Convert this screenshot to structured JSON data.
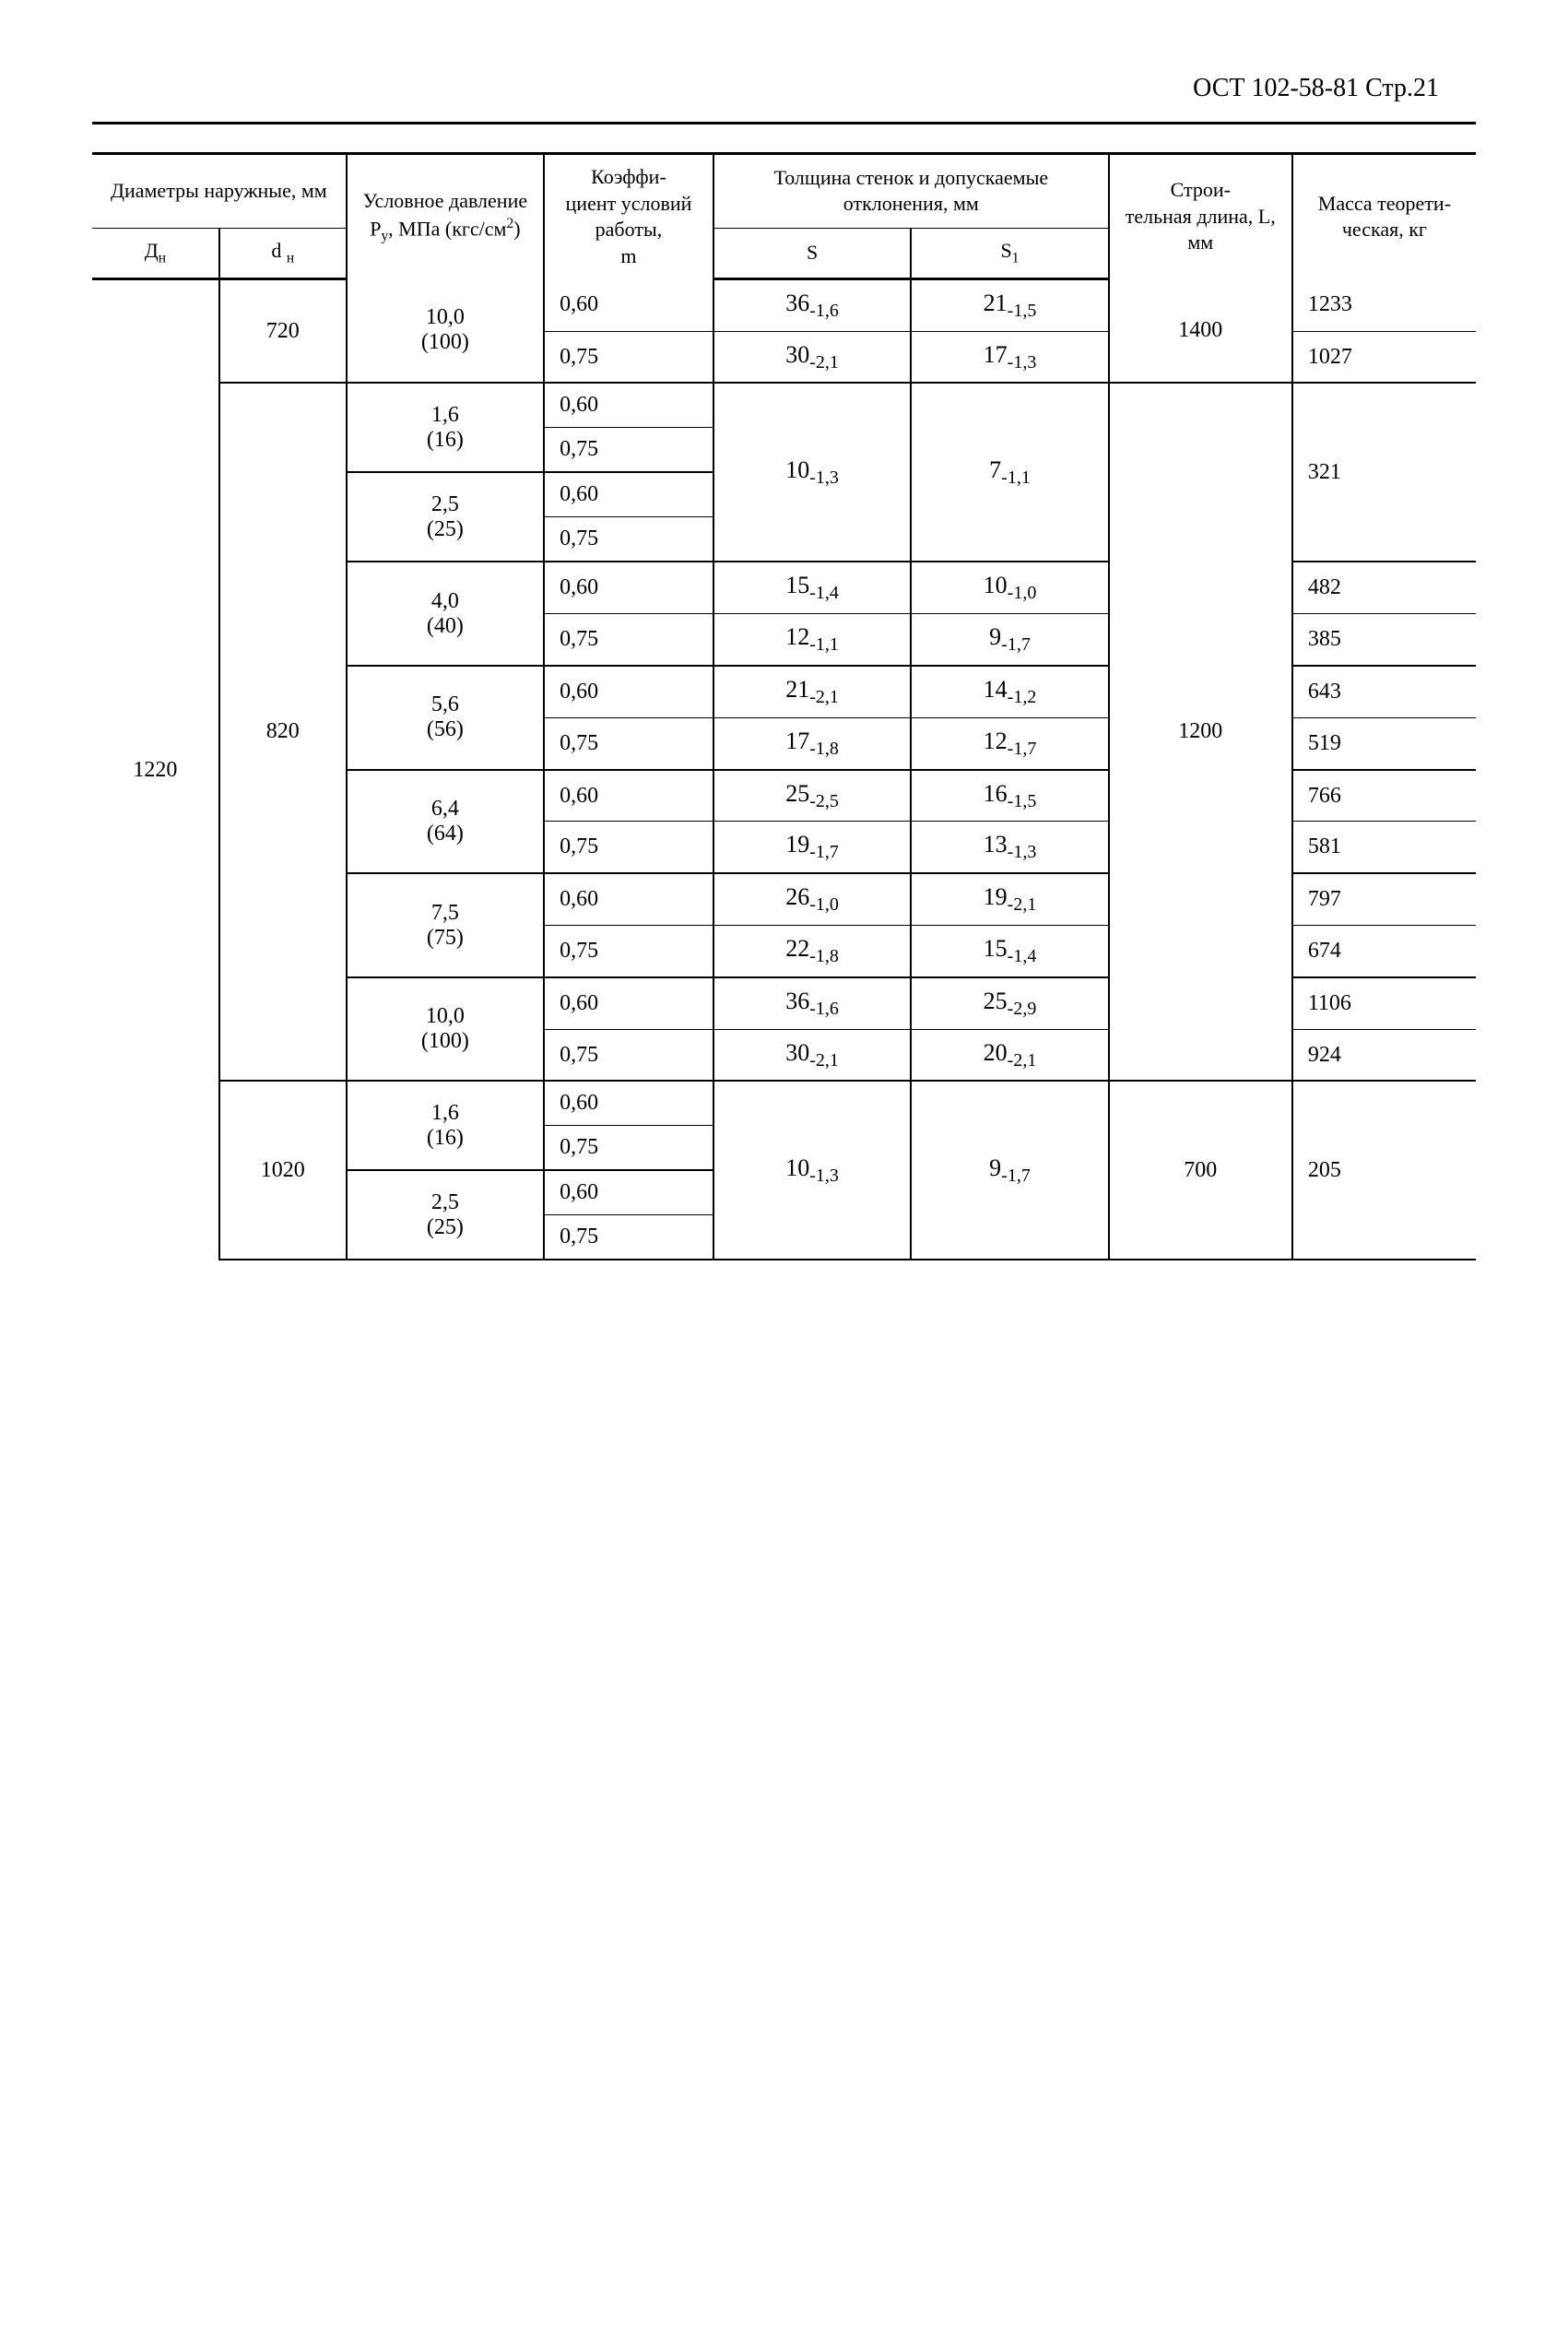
{
  "header": "ОСТ 102-58-81 Стр.21",
  "columns": {
    "diameters_group": "Диаметры наружные, мм",
    "dn_upper": "Дн",
    "dn_lower": "d н",
    "pressure": "Условное давление Ру, МПа (кгс/см²)",
    "coeff": "Коэффи-\nциент условий работы, m",
    "thickness_group": "Толщина стенок и допускаемые отклонения, мм",
    "s": "S",
    "s1": "S₁",
    "length": "Строи-\nтельная длина, L, мм",
    "mass": "Масса теорети-\nческая, кг"
  },
  "dn_main": "1220",
  "block1": {
    "dn": "720",
    "pressure": {
      "mpa": "10,0",
      "kgs": "(100)"
    },
    "length": "1400",
    "rows": [
      {
        "m": "0,60",
        "s": {
          "v": "36",
          "d": "-1,6"
        },
        "s1": {
          "v": "21",
          "d": "-1,5"
        },
        "mass": "1233"
      },
      {
        "m": "0,75",
        "s": {
          "v": "30",
          "d": "-2,1"
        },
        "s1": {
          "v": "17",
          "d": "-1,3"
        },
        "mass": "1027"
      }
    ]
  },
  "block2": {
    "dn": "820",
    "length": "1200",
    "groups": [
      {
        "pressure": {
          "mpa": "1,6",
          "kgs": "(16)"
        },
        "s": {
          "v": "10",
          "d": "-1,3"
        },
        "s1": {
          "v": "7",
          "d": "-1,1"
        },
        "mass": "321",
        "m1": "0,60",
        "m2": "0,75",
        "shared_s": true
      },
      {
        "pressure": {
          "mpa": "2,5",
          "kgs": "(25)"
        },
        "m1": "0,60",
        "m2": "0,75"
      },
      {
        "pressure": {
          "mpa": "4,0",
          "kgs": "(40)"
        },
        "r1": {
          "m": "0,60",
          "s": {
            "v": "15",
            "d": "-1,4"
          },
          "s1": {
            "v": "10",
            "d": "-1,0"
          },
          "mass": "482"
        },
        "r2": {
          "m": "0,75",
          "s": {
            "v": "12",
            "d": "-1,1"
          },
          "s1": {
            "v": "9",
            "d": "-1,7"
          },
          "mass": "385"
        }
      },
      {
        "pressure": {
          "mpa": "5,6",
          "kgs": "(56)"
        },
        "r1": {
          "m": "0,60",
          "s": {
            "v": "21",
            "d": "-2,1"
          },
          "s1": {
            "v": "14",
            "d": "-1,2"
          },
          "mass": "643"
        },
        "r2": {
          "m": "0,75",
          "s": {
            "v": "17",
            "d": "-1,8"
          },
          "s1": {
            "v": "12",
            "d": "-1,7"
          },
          "mass": "519"
        }
      },
      {
        "pressure": {
          "mpa": "6,4",
          "kgs": "(64)"
        },
        "r1": {
          "m": "0,60",
          "s": {
            "v": "25",
            "d": "-2,5"
          },
          "s1": {
            "v": "16",
            "d": "-1,5"
          },
          "mass": "766"
        },
        "r2": {
          "m": "0,75",
          "s": {
            "v": "19",
            "d": "-1,7"
          },
          "s1": {
            "v": "13",
            "d": "-1,3"
          },
          "mass": "581"
        }
      },
      {
        "pressure": {
          "mpa": "7,5",
          "kgs": "(75)"
        },
        "r1": {
          "m": "0,60",
          "s": {
            "v": "26",
            "d": "-1,0"
          },
          "s1": {
            "v": "19",
            "d": "-2,1"
          },
          "mass": "797"
        },
        "r2": {
          "m": "0,75",
          "s": {
            "v": "22",
            "d": "-1,8"
          },
          "s1": {
            "v": "15",
            "d": "-1,4"
          },
          "mass": "674"
        }
      },
      {
        "pressure": {
          "mpa": "10,0",
          "kgs": "(100)"
        },
        "r1": {
          "m": "0,60",
          "s": {
            "v": "36",
            "d": "-1,6"
          },
          "s1": {
            "v": "25",
            "d": "-2,9"
          },
          "mass": "1106"
        },
        "r2": {
          "m": "0,75",
          "s": {
            "v": "30",
            "d": "-2,1"
          },
          "s1": {
            "v": "20",
            "d": "-2,1"
          },
          "mass": "924"
        }
      }
    ]
  },
  "block3": {
    "dn": "1020",
    "length": "700",
    "s": {
      "v": "10",
      "d": "-1,3"
    },
    "s1": {
      "v": "9",
      "d": "-1,7"
    },
    "mass": "205",
    "groups": [
      {
        "pressure": {
          "mpa": "1,6",
          "kgs": "(16)"
        },
        "m1": "0,60",
        "m2": "0,75"
      },
      {
        "pressure": {
          "mpa": "2,5",
          "kgs": "(25)"
        },
        "m1": "0,60",
        "m2": "0,75"
      }
    ]
  }
}
